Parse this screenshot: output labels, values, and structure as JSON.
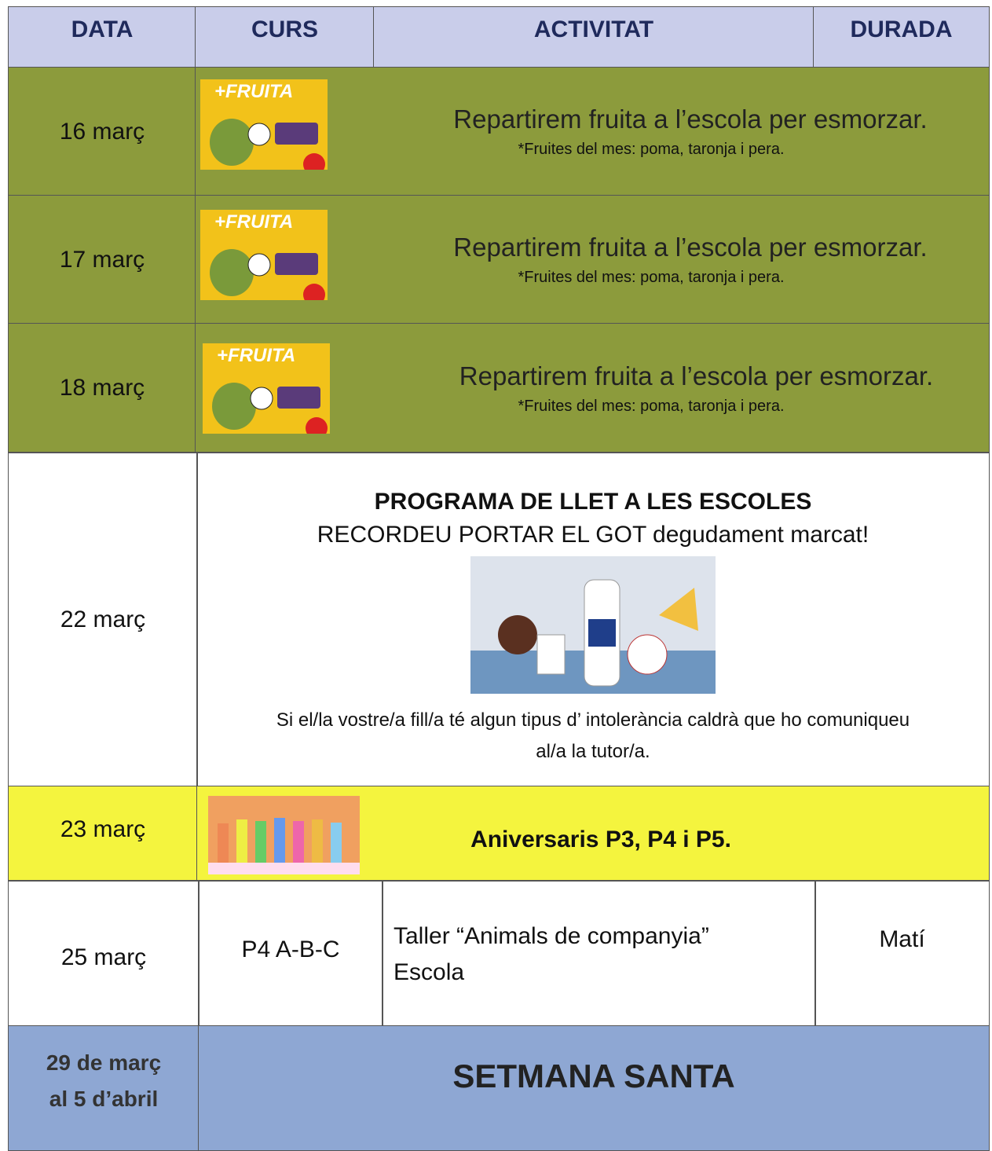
{
  "header": {
    "columns": [
      "DATA",
      "CURS",
      "ACTIVITAT",
      "DURADA"
    ]
  },
  "rows": [
    {
      "date": "16 març",
      "image_text": "+FRUITA",
      "activity": "Repartirem fruita a l’escola per esmorzar.",
      "note": "*Fruites del mes: poma, taronja i pera."
    },
    {
      "date": "17 març",
      "image_text": "+FRUITA",
      "activity": "Repartirem fruita a l’escola per esmorzar.",
      "note": "*Fruites del mes: poma, taronja i pera."
    },
    {
      "date": "18 març",
      "image_text": "+FRUITA",
      "activity": "Repartirem fruita a l’escola per esmorzar.",
      "note": "*Fruites del mes: poma, taronja i pera."
    },
    {
      "date": "22 març",
      "title": "PROGRAMA DE LLET A LES ESCOLES",
      "subtitle": "RECORDEU PORTAR EL GOT degudament marcat!",
      "note": "Si el/la vostre/a fill/a té algun tipus d’ intolerància caldrà que ho comuniqueu al/a la tutor/a."
    },
    {
      "date": "23 març",
      "activity": "Aniversaris P3, P4 i P5."
    },
    {
      "date": "25 març",
      "course": "P4 A-B-C",
      "activity_lines": [
        "Taller “Animals de companyia”",
        "Escola"
      ],
      "duration": "Matí"
    },
    {
      "date_lines": [
        "29 de març",
        "al 5 d’abril"
      ],
      "activity": "SETMANA SANTA"
    }
  ]
}
